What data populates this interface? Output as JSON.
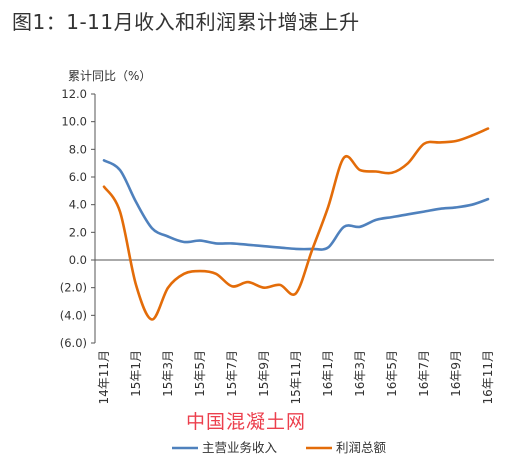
{
  "figure_title": "图1：1-11月收入和利润累计增速上升",
  "watermark": "中国混凝土网",
  "chart_data": {
    "type": "line",
    "title": "图1：1-11月收入和利润累计增速上升",
    "ylabel": "累计同比（%）",
    "xlabel": "",
    "ylim": [
      -6,
      12
    ],
    "yticks": [
      12,
      10,
      8,
      6,
      4,
      2,
      0,
      -2,
      -4,
      -6
    ],
    "ytick_labels": [
      "12.0",
      "10.0",
      "8.0",
      "6.0",
      "4.0",
      "2.0",
      "0.0",
      "(2.0)",
      "(4.0)",
      "(6.0)"
    ],
    "x": [
      "14年11月",
      "14年12月",
      "15年1月",
      "15年2月",
      "15年3月",
      "15年4月",
      "15年5月",
      "15年6月",
      "15年7月",
      "15年8月",
      "15年9月",
      "15年10月",
      "15年11月",
      "15年12月",
      "16年1月",
      "16年2月",
      "16年3月",
      "16年4月",
      "16年5月",
      "16年6月",
      "16年7月",
      "16年8月",
      "16年9月",
      "16年10月",
      "16年11月"
    ],
    "xtick_labels": [
      "14年11月",
      "15年1月",
      "15年3月",
      "15年5月",
      "15年7月",
      "15年9月",
      "15年11月",
      "16年1月",
      "16年3月",
      "16年5月",
      "16年7月",
      "16年9月",
      "16年11月"
    ],
    "grid": false,
    "legend_position": "bottom",
    "series": [
      {
        "name": "主营业务收入",
        "color": "#4f81bd",
        "values": [
          7.2,
          6.5,
          4.2,
          2.3,
          1.7,
          1.3,
          1.4,
          1.2,
          1.2,
          1.1,
          1.0,
          0.9,
          0.8,
          0.8,
          0.9,
          2.4,
          2.4,
          2.9,
          3.1,
          3.3,
          3.5,
          3.7,
          3.8,
          4.0,
          4.4
        ]
      },
      {
        "name": "利润总额",
        "color": "#e36c09",
        "values": [
          5.3,
          3.5,
          -1.8,
          -4.3,
          -2.0,
          -1.0,
          -0.8,
          -1.0,
          -1.9,
          -1.6,
          -2.0,
          -1.8,
          -2.4,
          0.7,
          3.8,
          7.4,
          6.5,
          6.4,
          6.3,
          7.0,
          8.4,
          8.5,
          8.6,
          9.0,
          9.5
        ]
      }
    ]
  }
}
